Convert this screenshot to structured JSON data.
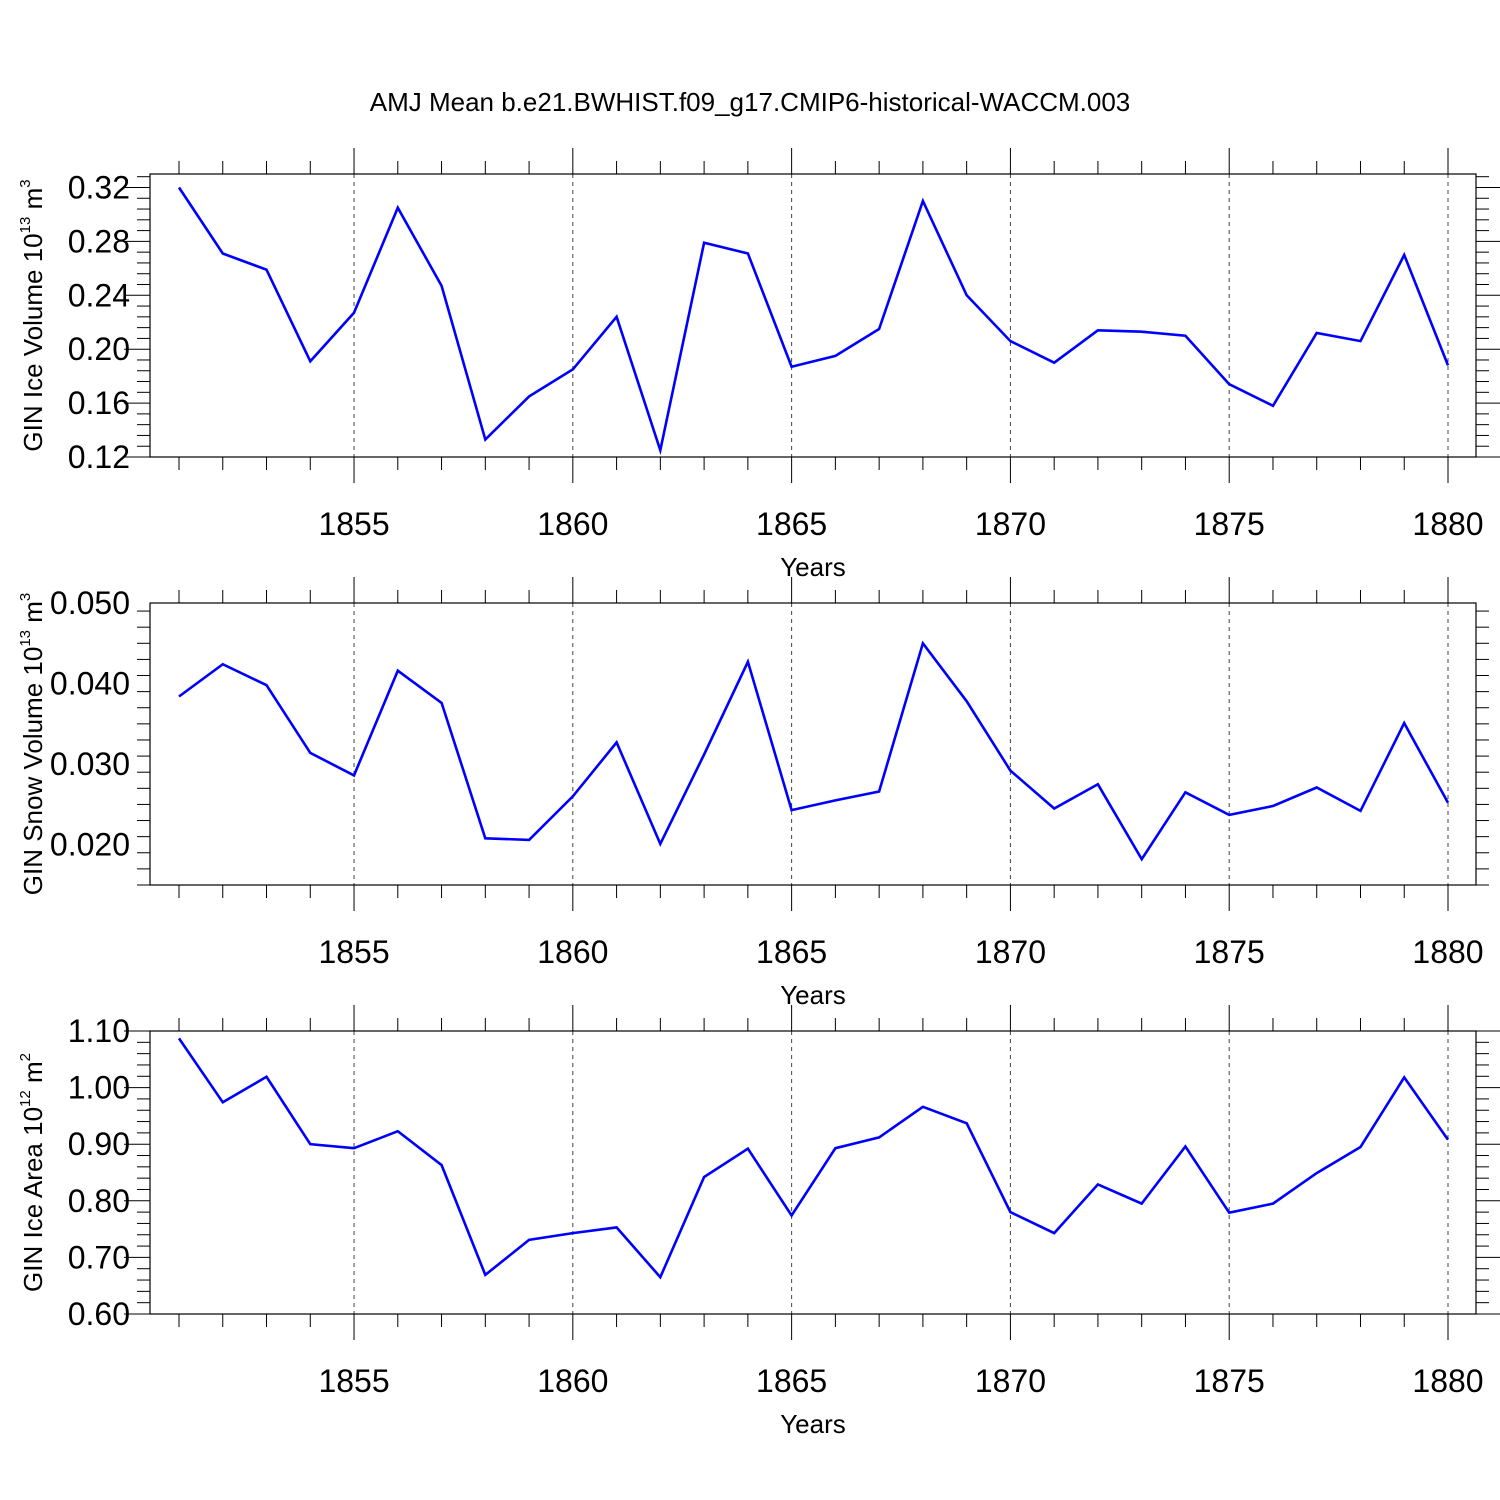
{
  "title": "AMJ Mean b.e21.BWHIST.f09_g17.CMIP6-historical-WACCM.003",
  "chart_data": [
    {
      "type": "line",
      "xlabel": "Years",
      "ylabel": {
        "text": "GIN Ice Volume 10",
        "exp": "13",
        "unit": " m",
        "unit_exp": "3"
      },
      "xlim": [
        1851,
        1880
      ],
      "ylim": [
        0.12,
        0.33
      ],
      "xticks": [
        1855,
        1860,
        1865,
        1870,
        1875,
        1880
      ],
      "yticks": [
        0.12,
        0.16,
        0.2,
        0.24,
        0.28,
        0.32
      ],
      "ytick_labels": [
        "0.12",
        "0.16",
        "0.20",
        "0.24",
        "0.28",
        "0.32"
      ],
      "x": [
        1851,
        1852,
        1853,
        1854,
        1855,
        1856,
        1857,
        1858,
        1859,
        1860,
        1861,
        1862,
        1863,
        1864,
        1865,
        1866,
        1867,
        1868,
        1869,
        1870,
        1871,
        1872,
        1873,
        1874,
        1875,
        1876,
        1877,
        1878,
        1879,
        1880
      ],
      "series": [
        {
          "color": "#0000ff",
          "values": [
            0.32,
            0.271,
            0.259,
            0.191,
            0.227,
            0.305,
            0.247,
            0.133,
            0.165,
            0.185,
            0.224,
            0.125,
            0.279,
            0.271,
            0.187,
            0.195,
            0.215,
            0.31,
            0.24,
            0.206,
            0.19,
            0.214,
            0.213,
            0.21,
            0.174,
            0.158,
            0.212,
            0.206,
            0.27,
            0.188
          ]
        }
      ],
      "grid": "x-dashed"
    },
    {
      "type": "line",
      "xlabel": "Years",
      "ylabel": {
        "text": "GIN Snow Volume 10",
        "exp": "13",
        "unit": " m",
        "unit_exp": "3"
      },
      "xlim": [
        1851,
        1880
      ],
      "ylim": [
        0.015,
        0.05
      ],
      "xticks": [
        1855,
        1860,
        1865,
        1870,
        1875,
        1880
      ],
      "yticks": [
        0.02,
        0.03,
        0.04,
        0.05
      ],
      "ytick_labels": [
        "0.020",
        "0.030",
        "0.040",
        "0.050"
      ],
      "x": [
        1851,
        1852,
        1853,
        1854,
        1855,
        1856,
        1857,
        1858,
        1859,
        1860,
        1861,
        1862,
        1863,
        1864,
        1865,
        1866,
        1867,
        1868,
        1869,
        1870,
        1871,
        1872,
        1873,
        1874,
        1875,
        1876,
        1877,
        1878,
        1879,
        1880
      ],
      "series": [
        {
          "color": "#0000ff",
          "values": [
            0.0384,
            0.0424,
            0.0398,
            0.0314,
            0.0286,
            0.0416,
            0.0376,
            0.0208,
            0.0206,
            0.026,
            0.0327,
            0.0201,
            0.0312,
            0.0427,
            0.0243,
            0.0255,
            0.0266,
            0.045,
            0.0378,
            0.0292,
            0.0245,
            0.0275,
            0.0182,
            0.0265,
            0.0237,
            0.0248,
            0.0271,
            0.0242,
            0.0351,
            0.0252
          ]
        }
      ],
      "grid": "x-dashed"
    },
    {
      "type": "line",
      "xlabel": "Years",
      "ylabel": {
        "text": "GIN Ice Area 10",
        "exp": "12",
        "unit": " m",
        "unit_exp": "2"
      },
      "xlim": [
        1851,
        1880
      ],
      "ylim": [
        0.6,
        1.1
      ],
      "xticks": [
        1855,
        1860,
        1865,
        1870,
        1875,
        1880
      ],
      "yticks": [
        0.6,
        0.7,
        0.8,
        0.9,
        1.0,
        1.1
      ],
      "ytick_labels": [
        "0.60",
        "0.70",
        "0.80",
        "0.90",
        "1.00",
        "1.10"
      ],
      "x": [
        1851,
        1852,
        1853,
        1854,
        1855,
        1856,
        1857,
        1858,
        1859,
        1860,
        1861,
        1862,
        1863,
        1864,
        1865,
        1866,
        1867,
        1868,
        1869,
        1870,
        1871,
        1872,
        1873,
        1874,
        1875,
        1876,
        1877,
        1878,
        1879,
        1880
      ],
      "series": [
        {
          "color": "#0000ff",
          "values": [
            1.087,
            0.974,
            1.019,
            0.9,
            0.893,
            0.923,
            0.863,
            0.669,
            0.731,
            0.743,
            0.753,
            0.665,
            0.842,
            0.892,
            0.774,
            0.893,
            0.912,
            0.966,
            0.937,
            0.78,
            0.743,
            0.829,
            0.795,
            0.896,
            0.779,
            0.795,
            0.849,
            0.895,
            1.018,
            0.908
          ]
        }
      ],
      "grid": "x-dashed"
    }
  ]
}
